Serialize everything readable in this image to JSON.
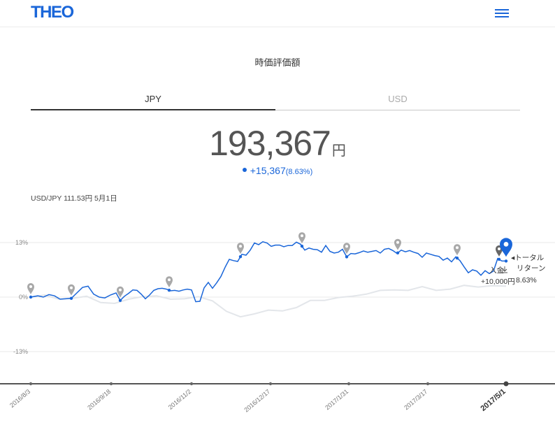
{
  "header": {
    "logo": "THEO",
    "menu_icon": "hamburger-menu-icon"
  },
  "title": "時価評価額",
  "tabs": [
    {
      "label": "JPY",
      "active": true
    },
    {
      "label": "USD",
      "active": false
    }
  ],
  "amount": {
    "value": "193,367",
    "unit": "円"
  },
  "change": {
    "value": "+15,367",
    "percent": "(8.63%)"
  },
  "fx_rate": "USD/JPY 111.53円 5月1日",
  "colors": {
    "accent": "#1a66d9",
    "grey_line": "#e3e6ea",
    "marker": "#9a9a9a"
  },
  "annotations": {
    "total_return": [
      "◂トータル",
      "リターン",
      "8.63%"
    ],
    "deposit": [
      "入金",
      "+10,000円"
    ]
  },
  "chart_data": {
    "type": "line",
    "ylim": [
      -22,
      22
    ],
    "y_ticks": [
      13,
      0,
      -13
    ],
    "y_tick_labels": [
      "13%",
      "0%",
      "-13%"
    ],
    "x_ticks": [
      "2016/8/3",
      "2016/9/18",
      "2016/11/2",
      "2016/12/17",
      "2017/1/31",
      "2017/3/17",
      "2017/5/1"
    ],
    "series": [
      {
        "color": "#1a66d9",
        "x": [
          0,
          10,
          18,
          26,
          34,
          42,
          50,
          58,
          66,
          74,
          82,
          90,
          98,
          106,
          114,
          122,
          128,
          134,
          140,
          146,
          152,
          158,
          164,
          170,
          176,
          182,
          188,
          194,
          200,
          206,
          212,
          218,
          224,
          230,
          236,
          242,
          248,
          254,
          260,
          266,
          272,
          278,
          284,
          290,
          296,
          302,
          308,
          314,
          320,
          326,
          332,
          338,
          344,
          350,
          356,
          362,
          368,
          374,
          380,
          386,
          392,
          398,
          404,
          410,
          416,
          422,
          428,
          434,
          440,
          446,
          452,
          458,
          464,
          470,
          476,
          482,
          488,
          494,
          500,
          506,
          512,
          518,
          524,
          530,
          536,
          542,
          548,
          554,
          560,
          566,
          572,
          578,
          584,
          590,
          596,
          602,
          608,
          614,
          620,
          626,
          632,
          638,
          644,
          650,
          656,
          662,
          668,
          674,
          680
        ],
        "values": [
          0,
          0.3,
          0,
          0.6,
          0.3,
          -0.5,
          -0.4,
          -0.3,
          1,
          2.3,
          2.6,
          0.7,
          0,
          -0.2,
          0.5,
          1,
          -0.8,
          0.2,
          0.9,
          1.7,
          1.6,
          0.7,
          -0.4,
          0.5,
          1.6,
          2,
          2.1,
          1.9,
          1.5,
          1.6,
          1.4,
          1.7,
          1.9,
          1.7,
          -1.1,
          -1,
          2.2,
          3.5,
          2.1,
          3.4,
          4.9,
          7.1,
          9,
          8.7,
          8.5,
          10.2,
          10,
          11.2,
          12.9,
          12.5,
          13.2,
          12.9,
          12.1,
          12.4,
          12.4,
          12,
          12.3,
          12.3,
          13.1,
          12.6,
          11.2,
          11.7,
          11.4,
          11.3,
          10.7,
          12.3,
          10.9,
          10.5,
          10.7,
          11.4,
          9.6,
          10.4,
          10.3,
          10.6,
          11,
          10.7,
          10.9,
          11.1,
          10.5,
          11.4,
          11.6,
          11.1,
          10.4,
          11.2,
          10.8,
          11.1,
          10.7,
          10.4,
          9.5,
          10.5,
          10.2,
          9.9,
          9.7,
          8.8,
          9.3,
          8.4,
          9.6,
          8.7,
          7.2,
          5.8,
          6.5,
          6.2,
          5.2,
          6.3,
          5.6,
          6.2,
          9.2,
          8.6,
          8.6
        ]
      },
      {
        "color": "#e3e6ea",
        "x": [
          0,
          20,
          40,
          60,
          80,
          100,
          120,
          140,
          160,
          180,
          200,
          220,
          240,
          260,
          280,
          300,
          320,
          340,
          360,
          380,
          400,
          420,
          440,
          460,
          480,
          500,
          520,
          540,
          560,
          580,
          600,
          620,
          640,
          660,
          680
        ],
        "values": [
          0,
          0.5,
          -0.5,
          -0.3,
          0.2,
          -1.3,
          -1.5,
          -0.5,
          0.1,
          0.3,
          -0.5,
          -0.4,
          0.1,
          -0.9,
          -3.4,
          -4.7,
          -4,
          -3.1,
          -3.3,
          -2.5,
          -0.8,
          -0.8,
          -0.1,
          0.2,
          0.7,
          1.6,
          1.7,
          1.6,
          2.5,
          1.6,
          1.9,
          2.8,
          2.4,
          2.7,
          2.6
        ]
      }
    ],
    "marker_x": [
      0,
      58,
      128,
      198,
      300,
      388,
      452,
      525,
      610,
      670,
      680
    ]
  }
}
